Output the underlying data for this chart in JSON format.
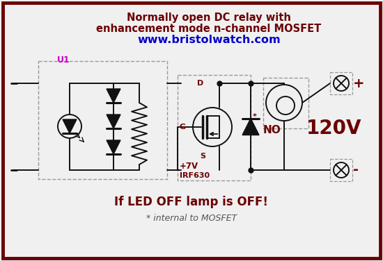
{
  "title_line1": "Normally open DC relay with",
  "title_line2": "enhancement mode n-channel MOSFET",
  "title_line3": "www.bristolwatch.com",
  "title_color1": "#6b0000",
  "title_color3": "#0000cc",
  "u1_label": "U1",
  "u1_color": "#cc00cc",
  "g_label": "G",
  "d_label": "D",
  "s_label": "S",
  "v7_label": "+7V",
  "irf_label": "IRF630",
  "no_label": "NO",
  "v120_label": "120V",
  "plus_label": "+",
  "minus_label": "-",
  "star_label": "*",
  "footer1": "If LED OFF lamp is OFF!",
  "footer2": "* internal to MOSFET",
  "footer1_color": "#6b0000",
  "footer2_color": "#555555",
  "bg_color": "#f0f0f0",
  "border_color": "#6b0000",
  "line_color": "#111111",
  "dark_red": "#6b0000",
  "dashed_color": "#999999",
  "fig_w": 5.5,
  "fig_h": 3.76,
  "dpi": 100
}
